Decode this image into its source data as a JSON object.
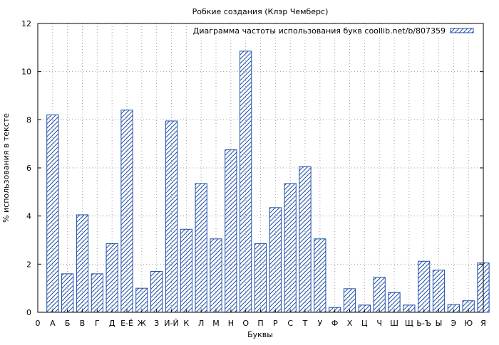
{
  "chart_data": {
    "type": "bar",
    "title": "Робкие создания (Клэр Чемберс)",
    "xlabel": "Буквы",
    "ylabel": "% использования в тексте",
    "legend": {
      "label": "Диаграмма частоты использования букв coollib.net/b/807359",
      "placement": "top-right"
    },
    "grid": true,
    "pattern": "diagonal-hatch",
    "colors": {
      "bar_stroke": "#1f4fa8",
      "hatch": "#1f4fa8",
      "grid": "#a0a0a0",
      "axis": "#000000",
      "background": "#ffffff"
    },
    "x_tick_labels": [
      "0",
      "А",
      "Б",
      "В",
      "Г",
      "Д",
      "Е-Ё",
      "Ж",
      "З",
      "И-Й",
      "К",
      "Л",
      "М",
      "Н",
      "О",
      "П",
      "Р",
      "С",
      "Т",
      "У",
      "Ф",
      "Х",
      "Ц",
      "Ч",
      "Ш",
      "Щ",
      "Ь-Ъ",
      "Ы",
      "Э",
      "Ю",
      "Я"
    ],
    "categories": [
      "А",
      "Б",
      "В",
      "Г",
      "Д",
      "Е-Ё",
      "Ж",
      "З",
      "И-Й",
      "К",
      "Л",
      "М",
      "Н",
      "О",
      "П",
      "Р",
      "С",
      "Т",
      "У",
      "Ф",
      "Х",
      "Ц",
      "Ч",
      "Ш",
      "Щ",
      "Ь-Ъ",
      "Ы",
      "Э",
      "Ю",
      "Я"
    ],
    "values": [
      8.2,
      1.6,
      4.05,
      1.6,
      2.85,
      8.4,
      1.0,
      1.7,
      7.95,
      3.45,
      5.35,
      3.05,
      6.75,
      10.85,
      2.85,
      4.35,
      5.35,
      6.05,
      3.05,
      0.2,
      0.98,
      0.3,
      1.45,
      0.82,
      0.3,
      2.12,
      1.75,
      0.32,
      0.48,
      2.05
    ],
    "ylim": [
      0,
      12
    ],
    "yticks": [
      0,
      2,
      4,
      6,
      8,
      10,
      12
    ]
  }
}
